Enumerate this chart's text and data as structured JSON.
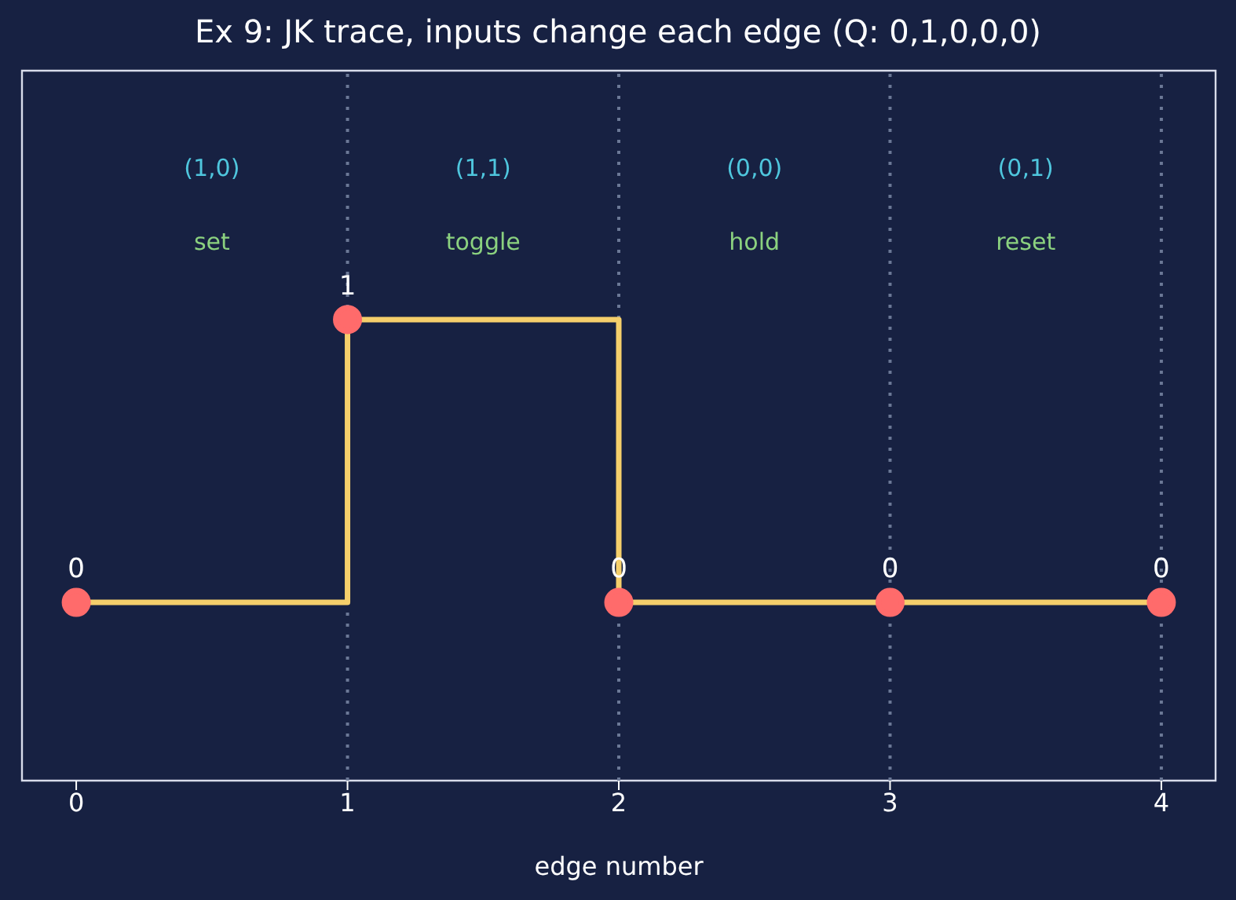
{
  "chart_data": {
    "type": "step",
    "title": "Ex 9: JK trace, inputs change each edge (Q: 0,1,0,0,0)",
    "xlabel": "edge number",
    "x": [
      0,
      1,
      2,
      3,
      4
    ],
    "series": [
      {
        "color": "#f5cf6b",
        "values": [
          0,
          1,
          0,
          0,
          0
        ]
      }
    ],
    "xlim": [
      -0.2,
      4.2
    ],
    "xticks": [
      0,
      1,
      2,
      3,
      4
    ],
    "tick_labels": "x",
    "marker": "circle",
    "line_style": "solid",
    "data_labels": true,
    "grid": false,
    "legend": false,
    "ref_lines": [
      {
        "axis": "x",
        "value": 1,
        "color": "#6b7896",
        "line_style": "dotted"
      },
      {
        "axis": "x",
        "value": 2,
        "color": "#6b7896",
        "line_style": "dotted"
      },
      {
        "axis": "x",
        "value": 3,
        "color": "#6b7896",
        "line_style": "dotted"
      },
      {
        "axis": "x",
        "value": 4,
        "color": "#6b7896",
        "line_style": "dotted"
      }
    ],
    "annotations": [
      "(1,0)",
      "set",
      "(1,1)",
      "toggle",
      "(0,0)",
      "hold",
      "(0,1)",
      "reset"
    ]
  }
}
